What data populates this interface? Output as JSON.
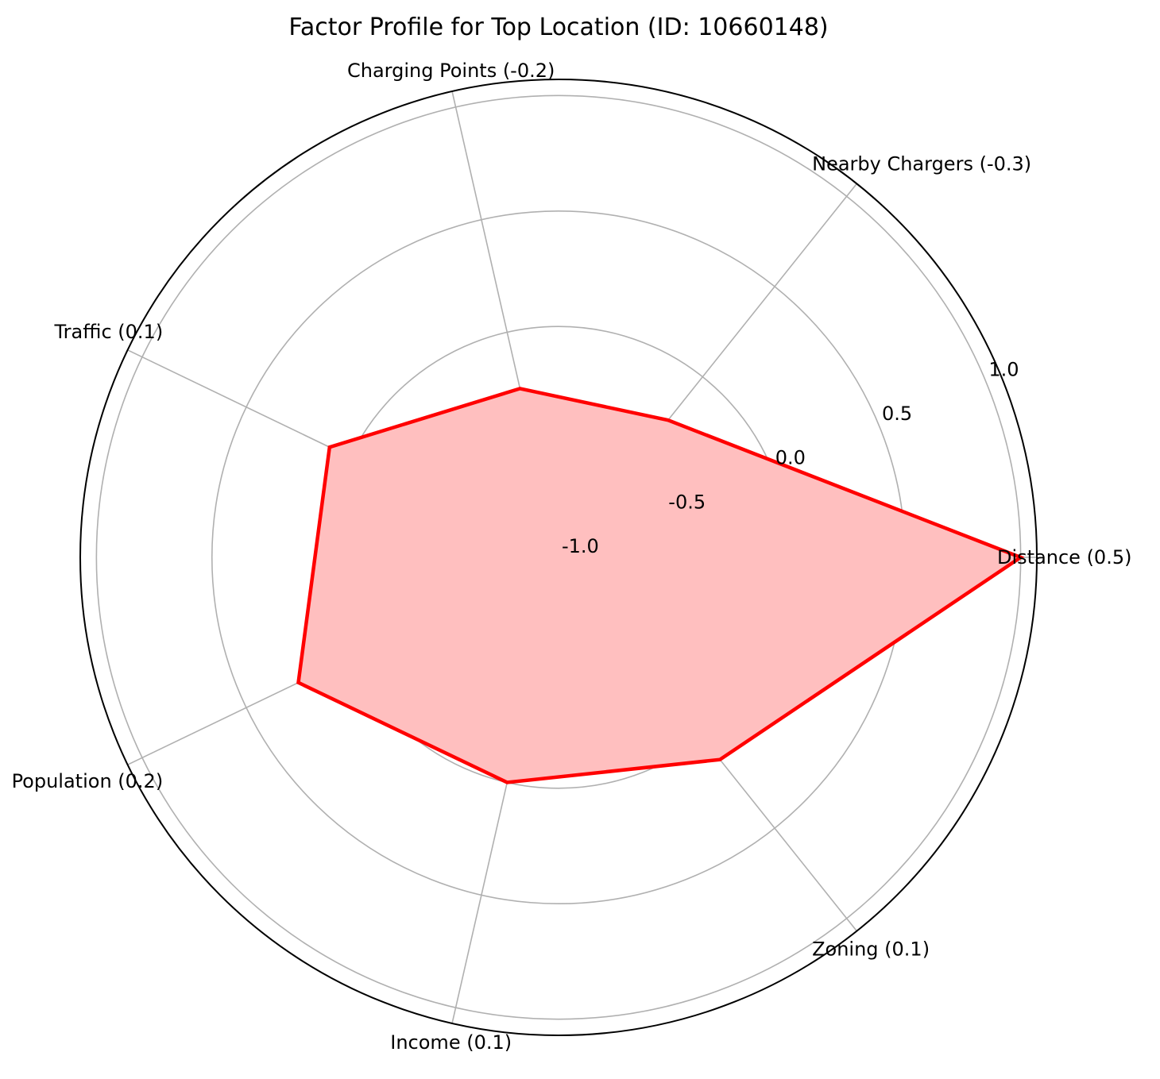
{
  "chart_data": {
    "type": "radar",
    "title": "Factor Profile for Top Location (ID: 10660148)",
    "categories": [
      "Distance (0.5)",
      "Nearby Chargers (-0.3)",
      "Charging Points (-0.2)",
      "Traffic (0.1)",
      "Population (0.2)",
      "Income (0.1)",
      "Zoning (0.1)"
    ],
    "series": [
      {
        "values": [
          1.0,
          -0.24,
          -0.25,
          0.1,
          0.25,
          0.0,
          0.12
        ],
        "color": "#ff0000",
        "fill_color": "#ffbfbf"
      }
    ],
    "radial_ticks": [
      -1.0,
      -0.5,
      0.0,
      0.5,
      1.0
    ],
    "radial_tick_labels": [
      "-1.0",
      "-0.5",
      "0.0",
      "0.5",
      "1.0"
    ],
    "rlim": [
      -1.0,
      1.07
    ],
    "grid": true,
    "legend": "none"
  }
}
